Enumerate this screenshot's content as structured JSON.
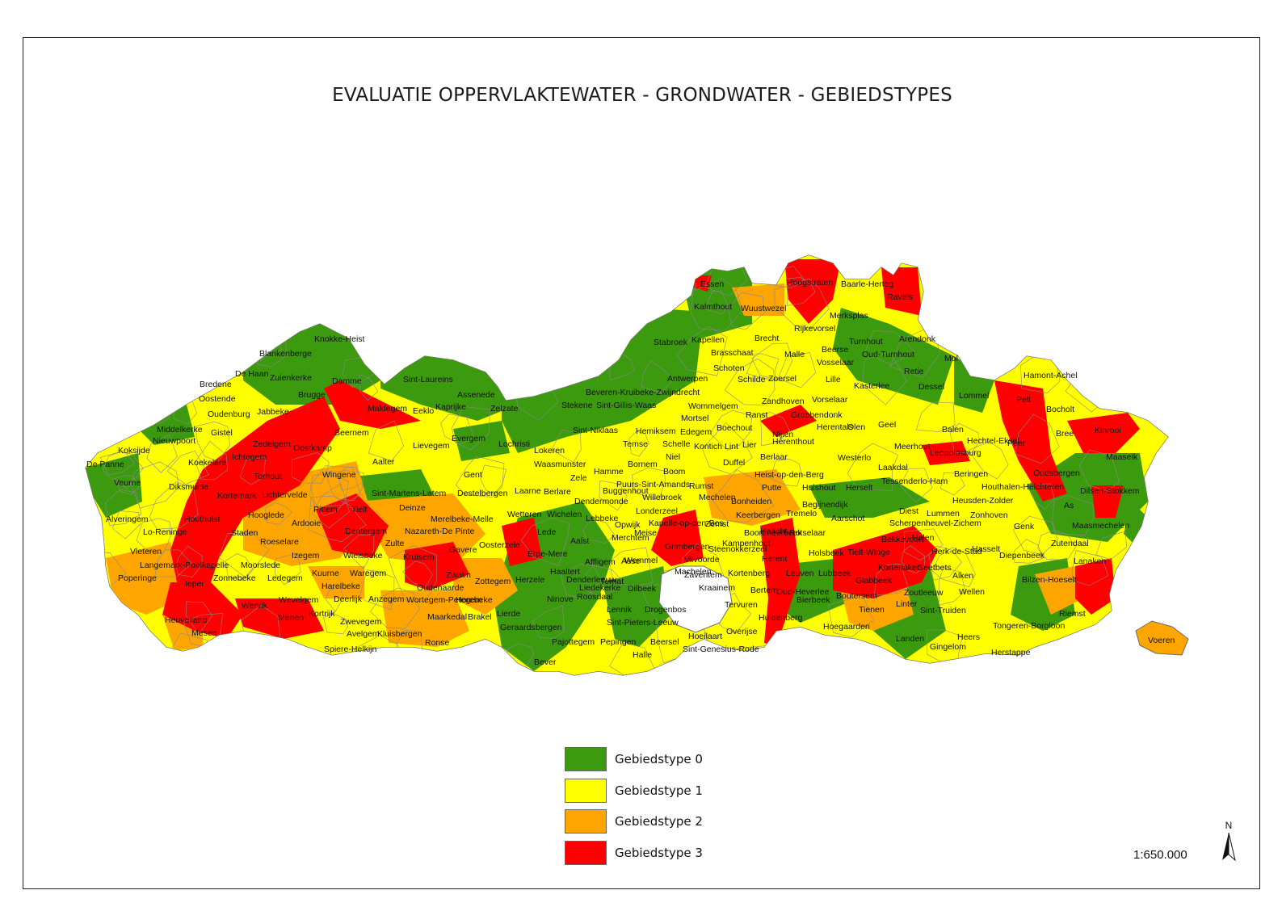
{
  "title": "EVALUATIE OPPERVLAKTEWATER - GRONDWATER - GEBIEDSTYPES",
  "colors": {
    "type0": "#3c9a0f",
    "type1": "#ffff00",
    "type2": "#ffa500",
    "type3": "#ff0000",
    "boundary": "#8a8a8a"
  },
  "legend": [
    {
      "label": "Gebiedstype 0",
      "color": "#3c9a0f"
    },
    {
      "label": "Gebiedstype 1",
      "color": "#ffff00"
    },
    {
      "label": "Gebiedstype 2",
      "color": "#ffa500"
    },
    {
      "label": "Gebiedstype 3",
      "color": "#ff0000"
    }
  ],
  "scale": "1:650.000",
  "north_label": "N",
  "municipalities": [
    "Knokke-Heist",
    "Blankenberge",
    "Bredene",
    "De Haan",
    "Zuienkerke",
    "Oostende",
    "Damme",
    "Brugge",
    "Oudenburg",
    "Jabbeke",
    "Middelkerke",
    "Gistel",
    "Nieuwpoort",
    "Koksijde",
    "Zedelgem",
    "Oostkamp",
    "De Panne",
    "Koekelare",
    "Ichtegem",
    "Beernem",
    "Maldegem",
    "Eeklo",
    "Sint-Laureins",
    "Kaprijke",
    "Assenede",
    "Zelzate",
    "Lievegem",
    "Evergem",
    "Aalter",
    "Wingene",
    "Veurne",
    "Diksmuide",
    "Torhout",
    "Lichtervelde",
    "Kortemark",
    "Alveringem",
    "Lo-Reninge",
    "Houthulst",
    "Hooglede",
    "Ardooie",
    "Pittem",
    "Tielt",
    "Staden",
    "Vleteren",
    "Roeselare",
    "Poperinge",
    "Langemark-Poelkapelle",
    "Moorslede",
    "Izegem",
    "Ieper",
    "Zonnebeke",
    "Ledegem",
    "Wervik",
    "Wevelgem",
    "Heuvelland",
    "Menen",
    "Mesen",
    "Kortrijk",
    "Kuurne",
    "Harelbeke",
    "Deerlijk",
    "Zwevegem",
    "Avelgem",
    "Spiere-Helkijn",
    "Anzegem",
    "Waregem",
    "Wielsbeke",
    "Dentergem",
    "Zulte",
    "Kluisbergen",
    "Kruisem",
    "Oudenaarde",
    "Wortegem-Petegem",
    "Maarkedal",
    "Ronse",
    "Brakel",
    "Horebeke",
    "Zwalm",
    "Zottegem",
    "Herzele",
    "Lierde",
    "Geraardsbergen",
    "Gavere",
    "Oosterzele",
    "Nazareth-De Pinte",
    "Merelbeke-Melle",
    "Sint-Martens-Latem",
    "Deinze",
    "Gent",
    "Destelbergen",
    "Lochristi",
    "Lokeren",
    "Waasmunster",
    "Laarne",
    "Berlare",
    "Wetteren",
    "Wichelen",
    "Lede",
    "Erpe-Mere",
    "Aalst",
    "Haaltert",
    "Ninove",
    "Denderleeuw",
    "Affligem",
    "Liedekerke",
    "Roosdaal",
    "Ternat",
    "Lennik",
    "Pajottegem",
    "Bever",
    "Pepingen",
    "Sint-Pieters-Leeuw",
    "Drogenbos",
    "Dilbeek",
    "Asse",
    "Opwijk",
    "Merchtem",
    "Lebbeke",
    "Dendermonde",
    "Hamme",
    "Zele",
    "Buggenhout",
    "Temse",
    "Sint-Niklaas",
    "Stekene",
    "Sint-Gillis-Waas",
    "Beveren-Kruibeke-Zwijndrecht",
    "Bornem",
    "Puurs-Sint-Amands",
    "Londerzeel",
    "Kapelle-op-den-Bos",
    "Meise",
    "Wemmel",
    "Grimbergen",
    "Vilvoorde",
    "Machelen",
    "Zaventem",
    "Kraainem",
    "Hoeilaart",
    "Overijse",
    "Sint-Genesius-Rode",
    "Beersel",
    "Halle",
    "Tervuren",
    "Bertem",
    "Kortenberg",
    "Steenokkerzeel",
    "Kampenhout",
    "Zemst",
    "Mechelen",
    "Willebroek",
    "Boom",
    "Niel",
    "Schelle",
    "Hemiksem",
    "Edegem",
    "Mortsel",
    "Kontich",
    "Lint",
    "Rumst",
    "Duffel",
    "Lier",
    "Boechout",
    "Ranst",
    "Wommelgem",
    "Antwerpen",
    "Schoten",
    "Schilde",
    "Zoersel",
    "Zandhoven",
    "Brasschaat",
    "Kapellen",
    "Stabroek",
    "Kalmthout",
    "Essen",
    "Wuustwezel",
    "Brecht",
    "Malle",
    "Hoogstraten",
    "Baarle-Hertog",
    "Merksplas",
    "Rijkevorsel",
    "Ravels",
    "Beerse",
    "Vosselaar",
    "Turnhout",
    "Oud-Turnhout",
    "Arendonk",
    "Lille",
    "Kasterlee",
    "Retie",
    "Dessel",
    "Mol",
    "Balen",
    "Geel",
    "Herentals",
    "Olen",
    "Grobbendonk",
    "Vorselaar",
    "Nijlen",
    "Herenthout",
    "Berlaar",
    "Heist-op-den-Berg",
    "Putte",
    "Bonheiden",
    "Keerbergen",
    "Tremelo",
    "Haacht",
    "Boortmeerbeek",
    "Rotselaar",
    "Herent",
    "Leuven",
    "Lubbeek",
    "Oud-Heverlee",
    "Huldenberg",
    "Bierbeek",
    "Holsbeek",
    "Aarschot",
    "Begijnendijk",
    "Hulshout",
    "Herselt",
    "Westerlo",
    "Laakdal",
    "Meerhout",
    "Tessenderlo-Ham",
    "Diest",
    "Scherpenheuvel-Zichem",
    "Tielt-Winge",
    "Bekkevoort",
    "Glabbeek",
    "Kortenaken",
    "Boutersem",
    "Tienen",
    "Hoegaarden",
    "Linter",
    "Zoutleeuw",
    "Landen",
    "Gingelom",
    "Geetbets",
    "Halen",
    "Herk-de-Stad",
    "Lummen",
    "Heusden-Zolder",
    "Beringen",
    "Leopoldsburg",
    "Hechtel-Eksel",
    "Lommel",
    "Pelt",
    "Hamont-Achel",
    "Peer",
    "Bocholt",
    "Bree",
    "Kinrooi",
    "Maaseik",
    "Oudsbergen",
    "Houthalen-Helchteren",
    "Zonhoven",
    "Hasselt",
    "Genk",
    "As",
    "Dilsen-Stokkem",
    "Maasmechelen",
    "Zutendaal",
    "Lanaken",
    "Diepenbeek",
    "Alken",
    "Wellen",
    "Sint-Truiden",
    "Heers",
    "Bilzen-Hoeselt",
    "Riemst",
    "Tongeren-Borgloon",
    "Herstappe",
    "Voeren"
  ]
}
